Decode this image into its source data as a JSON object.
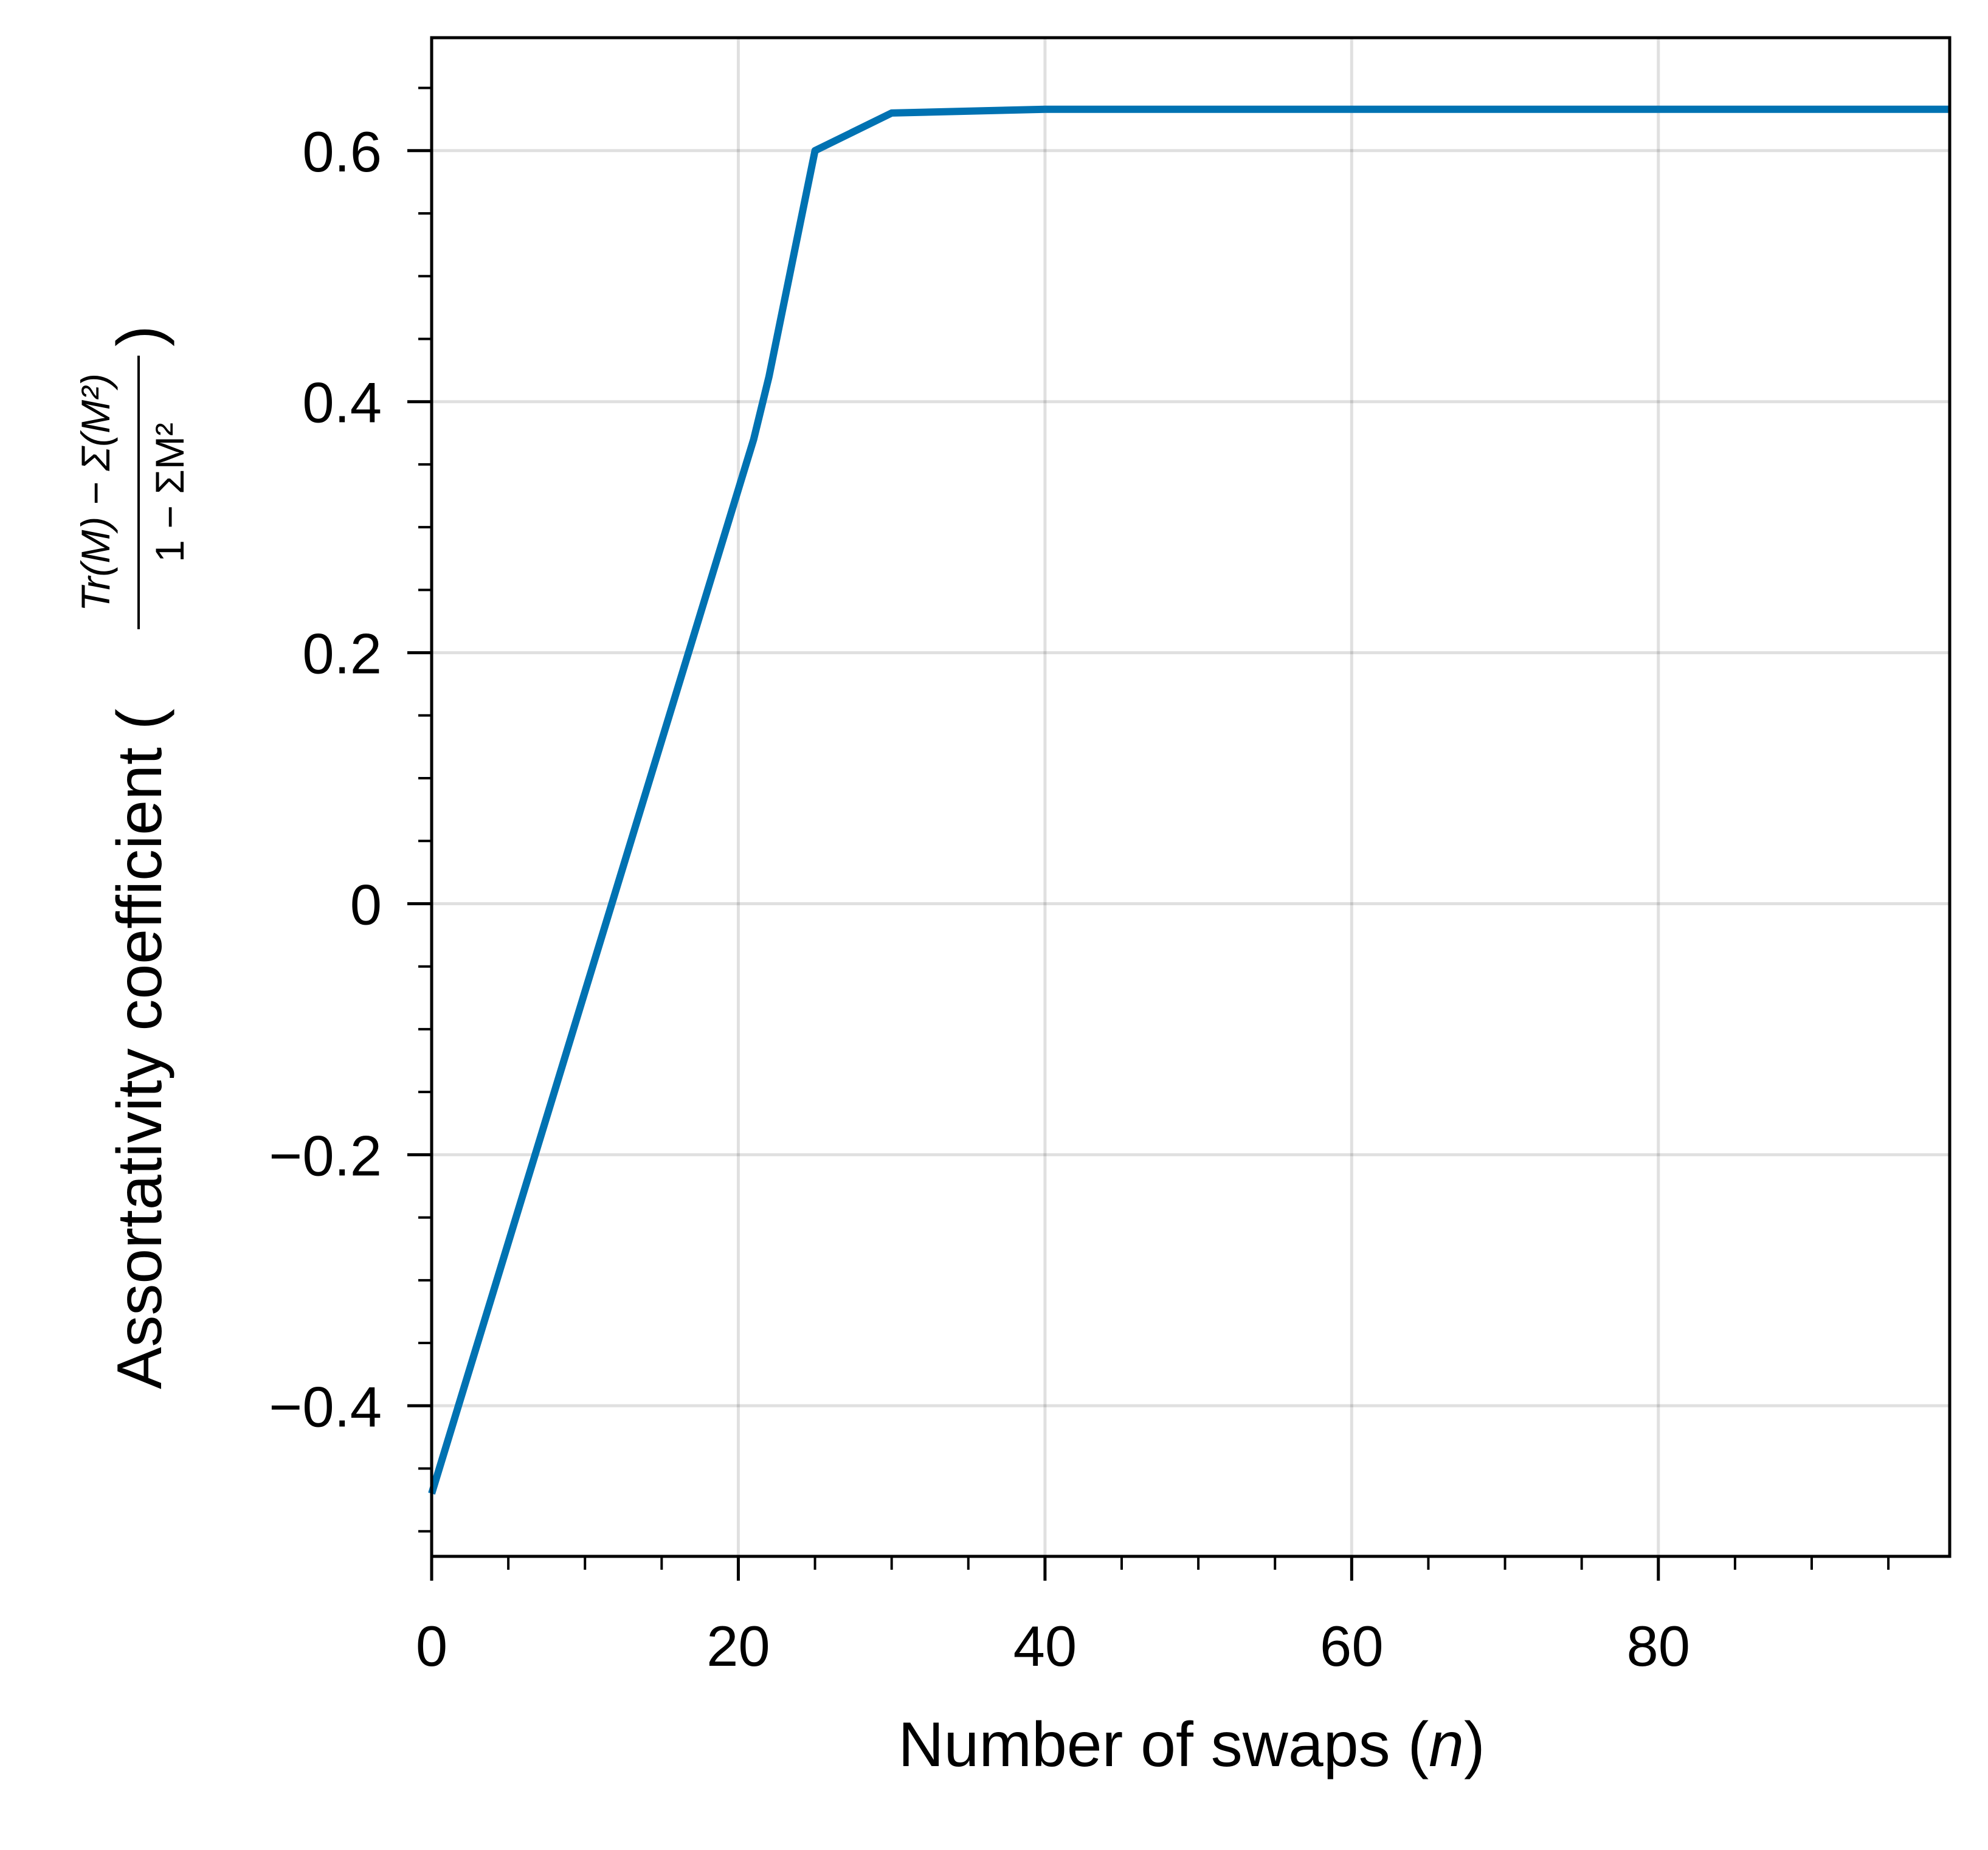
{
  "chart_data": {
    "type": "line",
    "xlabel": {
      "main": "Number of swaps (",
      "var": "n",
      "close": ")"
    },
    "ylabel": {
      "main": "Assortativity coefficient (",
      "numerator": "Tr(M) − Σ(M²)",
      "denominator": "1 − ΣM²",
      "close": ")"
    },
    "xlim": [
      0,
      99
    ],
    "ylim": [
      -0.52,
      0.69
    ],
    "x_ticks": [
      0,
      20,
      40,
      60,
      80
    ],
    "x_tick_labels": [
      "0",
      "20",
      "40",
      "60",
      "80"
    ],
    "y_ticks": [
      -0.4,
      -0.2,
      0,
      0.2,
      0.4,
      0.6
    ],
    "y_tick_labels": [
      "−0.4",
      "−0.2",
      "0",
      "0.2",
      "0.4",
      "0.6"
    ],
    "grid": true,
    "series": [
      {
        "color": "#0072b2",
        "x": [
          0,
          1,
          2,
          4,
          6,
          8,
          10,
          12,
          14,
          16,
          18,
          20,
          21,
          22,
          23,
          24,
          25,
          30,
          40,
          50,
          60,
          70,
          80,
          90,
          99
        ],
        "y": [
          -0.47,
          -0.43,
          -0.39,
          -0.31,
          -0.23,
          -0.15,
          -0.07,
          0.01,
          0.09,
          0.17,
          0.25,
          0.33,
          0.37,
          0.42,
          0.48,
          0.54,
          0.6,
          0.63,
          0.633,
          0.633,
          0.633,
          0.633,
          0.633,
          0.633,
          0.633
        ]
      }
    ]
  }
}
